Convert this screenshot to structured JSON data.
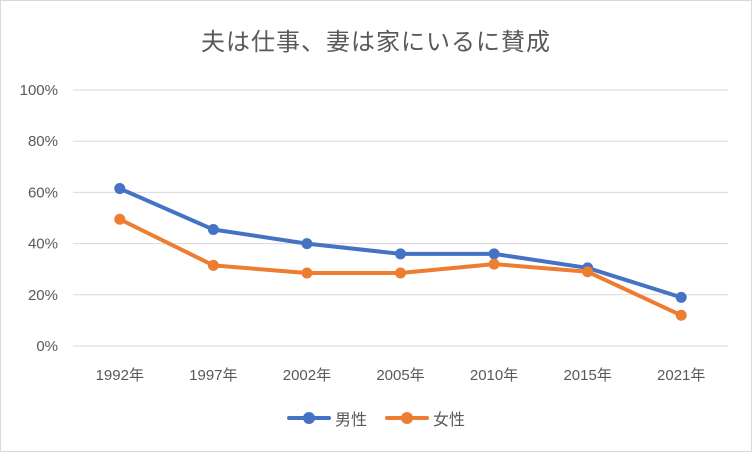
{
  "chart_data": {
    "type": "line",
    "title": "夫は仕事、妻は家にいるに賛成",
    "categories": [
      "1992年",
      "1997年",
      "2002年",
      "2005年",
      "2010年",
      "2015年",
      "2021年"
    ],
    "series": [
      {
        "name": "男性",
        "color": "#4472C4",
        "values": [
          61.5,
          45.5,
          40,
          36,
          36,
          30.5,
          19
        ]
      },
      {
        "name": "女性",
        "color": "#ED7D31",
        "values": [
          49.5,
          31.5,
          28.5,
          28.5,
          32,
          29,
          12
        ]
      }
    ],
    "ylim": [
      0,
      100
    ],
    "yticks": [
      "0%",
      "20%",
      "40%",
      "60%",
      "80%",
      "100%"
    ],
    "ytick_values": [
      0,
      20,
      40,
      60,
      80,
      100
    ],
    "grid": true,
    "legend_position": "bottom",
    "xlabel": "",
    "ylabel": ""
  }
}
